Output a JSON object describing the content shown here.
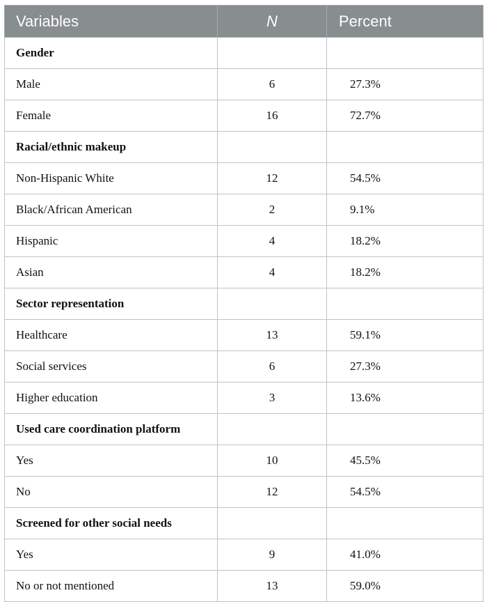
{
  "table": {
    "headers": [
      "Variables",
      "N",
      "Percent"
    ],
    "rows": [
      {
        "type": "section",
        "label": "Gender"
      },
      {
        "type": "data",
        "label": "Male",
        "n": "6",
        "percent": "27.3%"
      },
      {
        "type": "data",
        "label": "Female",
        "n": "16",
        "percent": "72.7%"
      },
      {
        "type": "section",
        "label": "Racial/ethnic makeup"
      },
      {
        "type": "data",
        "label": "Non-Hispanic White",
        "n": "12",
        "percent": "54.5%"
      },
      {
        "type": "data",
        "label": "Black/African American",
        "n": "2",
        "percent": "9.1%"
      },
      {
        "type": "data",
        "label": "Hispanic",
        "n": "4",
        "percent": "18.2%"
      },
      {
        "type": "data",
        "label": "Asian",
        "n": "4",
        "percent": "18.2%"
      },
      {
        "type": "section",
        "label": "Sector representation"
      },
      {
        "type": "data",
        "label": "Healthcare",
        "n": "13",
        "percent": "59.1%"
      },
      {
        "type": "data",
        "label": "Social services",
        "n": "6",
        "percent": "27.3%"
      },
      {
        "type": "data",
        "label": "Higher education",
        "n": "3",
        "percent": "13.6%"
      },
      {
        "type": "section",
        "label": "Used care coordination platform"
      },
      {
        "type": "data",
        "label": "Yes",
        "n": "10",
        "percent": "45.5%"
      },
      {
        "type": "data",
        "label": "No",
        "n": "12",
        "percent": "54.5%"
      },
      {
        "type": "section",
        "label": "Screened for other social needs"
      },
      {
        "type": "data",
        "label": "Yes",
        "n": "9",
        "percent": "41.0%"
      },
      {
        "type": "data",
        "label": "No or not mentioned",
        "n": "13",
        "percent": "59.0%"
      }
    ]
  }
}
